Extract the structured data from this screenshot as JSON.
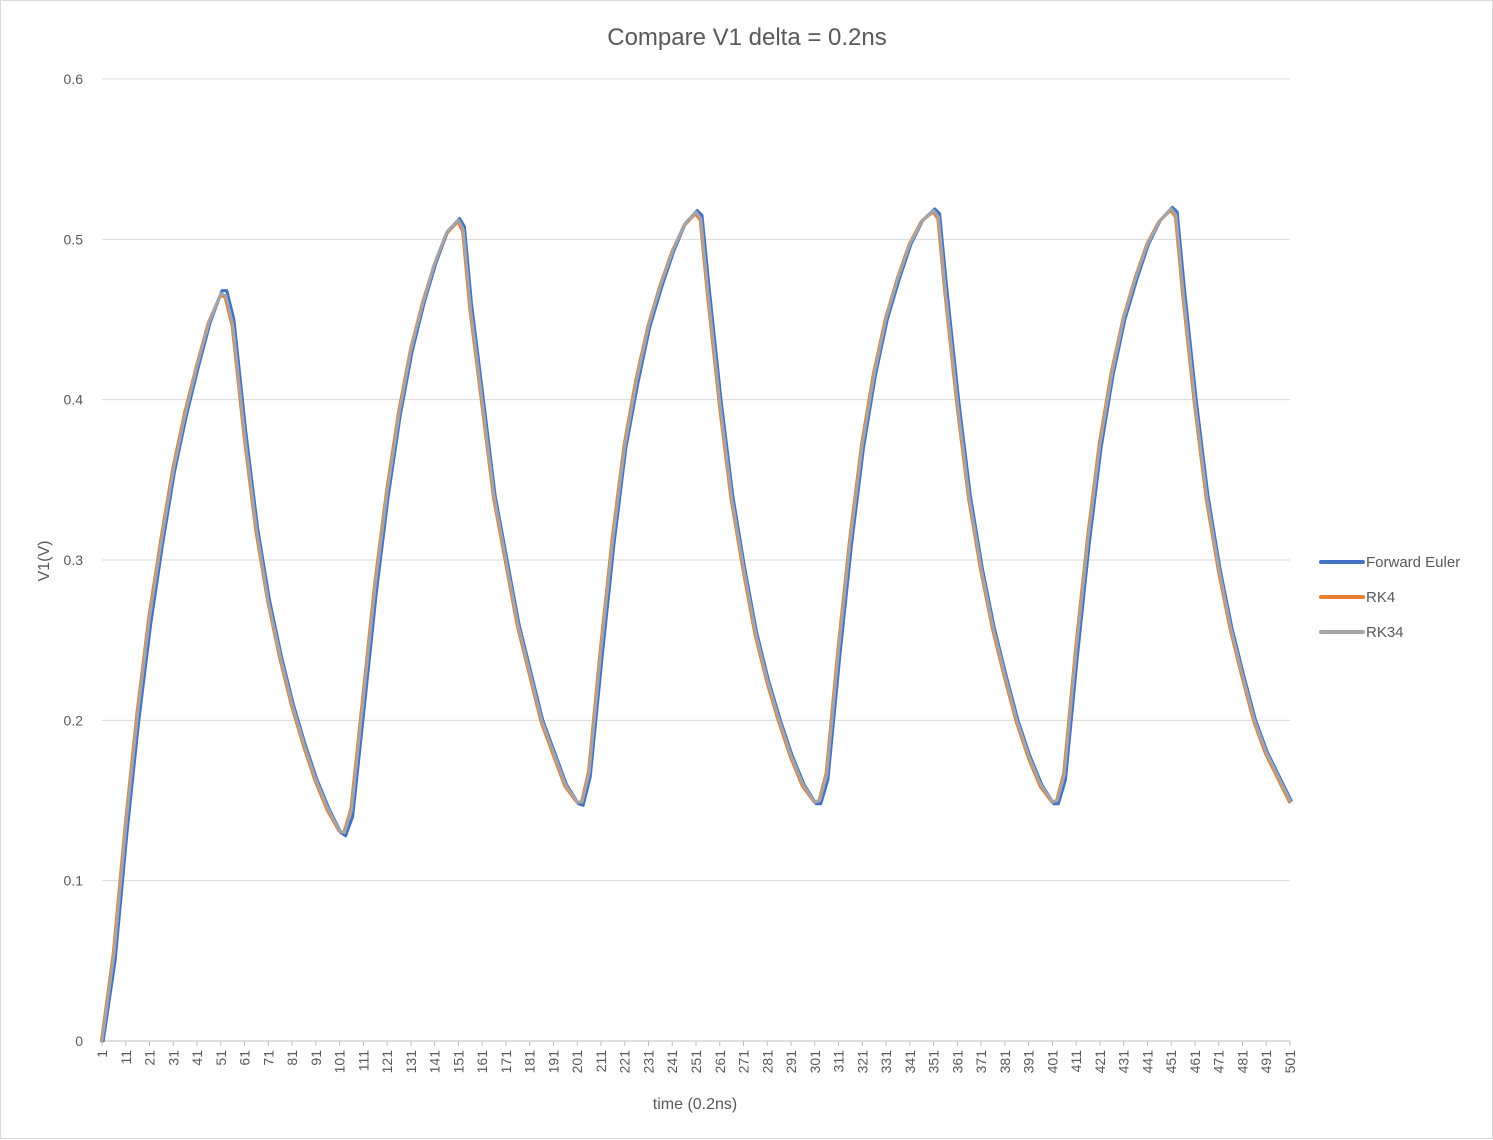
{
  "chart_data": {
    "type": "line",
    "title": "Compare V1 delta = 0.2ns",
    "xlabel": "time (0.2ns)",
    "ylabel": "V1(V)",
    "xlim": [
      1,
      501
    ],
    "ylim": [
      0,
      0.6
    ],
    "yticks": [
      "0",
      "0.1",
      "0.2",
      "0.3",
      "0.4",
      "0.5",
      "0.6"
    ],
    "xticks": [
      "1",
      "11",
      "21",
      "31",
      "41",
      "51",
      "61",
      "71",
      "81",
      "91",
      "101",
      "111",
      "121",
      "131",
      "141",
      "151",
      "161",
      "171",
      "181",
      "191",
      "201",
      "211",
      "221",
      "231",
      "241",
      "251",
      "261",
      "271",
      "281",
      "291",
      "301",
      "311",
      "321",
      "331",
      "341",
      "351",
      "361",
      "371",
      "381",
      "391",
      "401",
      "411",
      "421",
      "431",
      "441",
      "451",
      "461",
      "471",
      "481",
      "491",
      "501"
    ],
    "grid": "horizontal",
    "legend_position": "right",
    "series": [
      {
        "name": "Forward Euler",
        "color": "#4472C4",
        "x": [
          1,
          6,
          11,
          16,
          21,
          26,
          31,
          36,
          41,
          46,
          51,
          53,
          56,
          61,
          66,
          71,
          76,
          81,
          86,
          91,
          96,
          101,
          103,
          106,
          111,
          116,
          121,
          126,
          131,
          136,
          141,
          146,
          151,
          153,
          156,
          161,
          166,
          171,
          176,
          181,
          186,
          191,
          196,
          201,
          203,
          206,
          211,
          216,
          221,
          226,
          231,
          236,
          241,
          246,
          251,
          253,
          256,
          261,
          266,
          271,
          276,
          281,
          286,
          291,
          296,
          301,
          303,
          306,
          311,
          316,
          321,
          326,
          331,
          336,
          341,
          346,
          351,
          353,
          356,
          361,
          366,
          371,
          376,
          381,
          386,
          391,
          396,
          401,
          403,
          406,
          411,
          416,
          421,
          426,
          431,
          436,
          441,
          446,
          451,
          453,
          456,
          461,
          466,
          471,
          476,
          481,
          486,
          491,
          496,
          501
        ],
        "y": [
          0.0,
          0.05,
          0.13,
          0.2,
          0.26,
          0.31,
          0.355,
          0.39,
          0.42,
          0.448,
          0.468,
          0.468,
          0.45,
          0.38,
          0.32,
          0.275,
          0.24,
          0.21,
          0.185,
          0.163,
          0.145,
          0.13,
          0.128,
          0.14,
          0.21,
          0.28,
          0.34,
          0.39,
          0.43,
          0.46,
          0.485,
          0.505,
          0.513,
          0.508,
          0.46,
          0.4,
          0.34,
          0.3,
          0.26,
          0.23,
          0.2,
          0.18,
          0.16,
          0.148,
          0.147,
          0.165,
          0.24,
          0.31,
          0.37,
          0.41,
          0.445,
          0.47,
          0.492,
          0.51,
          0.518,
          0.515,
          0.47,
          0.4,
          0.34,
          0.295,
          0.255,
          0.225,
          0.2,
          0.178,
          0.16,
          0.148,
          0.148,
          0.163,
          0.24,
          0.31,
          0.37,
          0.415,
          0.45,
          0.475,
          0.497,
          0.512,
          0.519,
          0.516,
          0.47,
          0.4,
          0.34,
          0.295,
          0.258,
          0.228,
          0.2,
          0.178,
          0.16,
          0.148,
          0.148,
          0.163,
          0.24,
          0.31,
          0.37,
          0.415,
          0.45,
          0.475,
          0.497,
          0.512,
          0.52,
          0.517,
          0.47,
          0.4,
          0.34,
          0.295,
          0.258,
          0.228,
          0.2,
          0.18,
          0.165,
          0.15
        ]
      },
      {
        "name": "RK4",
        "color": "#ED7D31",
        "x": [
          1,
          6,
          11,
          16,
          21,
          26,
          31,
          36,
          41,
          46,
          51,
          53,
          56,
          61,
          66,
          71,
          76,
          81,
          86,
          91,
          96,
          101,
          103,
          106,
          111,
          116,
          121,
          126,
          131,
          136,
          141,
          146,
          151,
          153,
          156,
          161,
          166,
          171,
          176,
          181,
          186,
          191,
          196,
          201,
          203,
          206,
          211,
          216,
          221,
          226,
          231,
          236,
          241,
          246,
          251,
          253,
          256,
          261,
          266,
          271,
          276,
          281,
          286,
          291,
          296,
          301,
          303,
          306,
          311,
          316,
          321,
          326,
          331,
          336,
          341,
          346,
          351,
          353,
          356,
          361,
          366,
          371,
          376,
          381,
          386,
          391,
          396,
          401,
          403,
          406,
          411,
          416,
          421,
          426,
          431,
          436,
          441,
          446,
          451,
          453,
          456,
          461,
          466,
          471,
          476,
          481,
          486,
          491,
          496,
          501
        ],
        "y": [
          0.0,
          0.055,
          0.135,
          0.205,
          0.265,
          0.313,
          0.357,
          0.392,
          0.421,
          0.448,
          0.465,
          0.464,
          0.446,
          0.377,
          0.318,
          0.274,
          0.239,
          0.209,
          0.184,
          0.162,
          0.144,
          0.131,
          0.13,
          0.145,
          0.215,
          0.285,
          0.343,
          0.392,
          0.431,
          0.46,
          0.484,
          0.503,
          0.511,
          0.505,
          0.457,
          0.398,
          0.339,
          0.299,
          0.259,
          0.229,
          0.199,
          0.179,
          0.159,
          0.149,
          0.149,
          0.168,
          0.245,
          0.314,
          0.372,
          0.413,
          0.446,
          0.471,
          0.492,
          0.508,
          0.516,
          0.512,
          0.466,
          0.397,
          0.338,
          0.294,
          0.254,
          0.224,
          0.199,
          0.177,
          0.159,
          0.149,
          0.15,
          0.167,
          0.245,
          0.314,
          0.373,
          0.417,
          0.451,
          0.476,
          0.497,
          0.511,
          0.517,
          0.513,
          0.466,
          0.397,
          0.338,
          0.294,
          0.257,
          0.227,
          0.199,
          0.177,
          0.159,
          0.149,
          0.15,
          0.167,
          0.245,
          0.314,
          0.373,
          0.417,
          0.451,
          0.476,
          0.497,
          0.511,
          0.518,
          0.514,
          0.466,
          0.397,
          0.338,
          0.294,
          0.257,
          0.227,
          0.199,
          0.179,
          0.164,
          0.149
        ]
      },
      {
        "name": "RK34",
        "color": "#A5A5A5",
        "x": [
          1,
          6,
          11,
          16,
          21,
          26,
          31,
          36,
          41,
          46,
          51,
          53,
          56,
          61,
          66,
          71,
          76,
          81,
          86,
          91,
          96,
          101,
          103,
          106,
          111,
          116,
          121,
          126,
          131,
          136,
          141,
          146,
          151,
          153,
          156,
          161,
          166,
          171,
          176,
          181,
          186,
          191,
          196,
          201,
          203,
          206,
          211,
          216,
          221,
          226,
          231,
          236,
          241,
          246,
          251,
          253,
          256,
          261,
          266,
          271,
          276,
          281,
          286,
          291,
          296,
          301,
          303,
          306,
          311,
          316,
          321,
          326,
          331,
          336,
          341,
          346,
          351,
          353,
          356,
          361,
          366,
          371,
          376,
          381,
          386,
          391,
          396,
          401,
          403,
          406,
          411,
          416,
          421,
          426,
          431,
          436,
          441,
          446,
          451,
          453,
          456,
          461,
          466,
          471,
          476,
          481,
          486,
          491,
          496,
          501
        ],
        "y": [
          0.0,
          0.054,
          0.134,
          0.204,
          0.264,
          0.312,
          0.356,
          0.391,
          0.421,
          0.448,
          0.466,
          0.465,
          0.447,
          0.378,
          0.319,
          0.274,
          0.24,
          0.21,
          0.185,
          0.163,
          0.145,
          0.131,
          0.13,
          0.144,
          0.214,
          0.284,
          0.342,
          0.391,
          0.431,
          0.46,
          0.485,
          0.504,
          0.512,
          0.506,
          0.458,
          0.399,
          0.34,
          0.3,
          0.26,
          0.23,
          0.2,
          0.18,
          0.16,
          0.149,
          0.149,
          0.167,
          0.244,
          0.313,
          0.371,
          0.412,
          0.446,
          0.471,
          0.492,
          0.509,
          0.517,
          0.513,
          0.467,
          0.398,
          0.339,
          0.295,
          0.255,
          0.225,
          0.2,
          0.178,
          0.16,
          0.149,
          0.15,
          0.166,
          0.244,
          0.313,
          0.372,
          0.416,
          0.451,
          0.476,
          0.497,
          0.511,
          0.518,
          0.514,
          0.467,
          0.398,
          0.339,
          0.295,
          0.258,
          0.228,
          0.2,
          0.178,
          0.16,
          0.149,
          0.15,
          0.166,
          0.244,
          0.313,
          0.372,
          0.416,
          0.451,
          0.476,
          0.497,
          0.511,
          0.519,
          0.515,
          0.467,
          0.398,
          0.339,
          0.295,
          0.258,
          0.228,
          0.2,
          0.18,
          0.165,
          0.15
        ]
      }
    ]
  }
}
